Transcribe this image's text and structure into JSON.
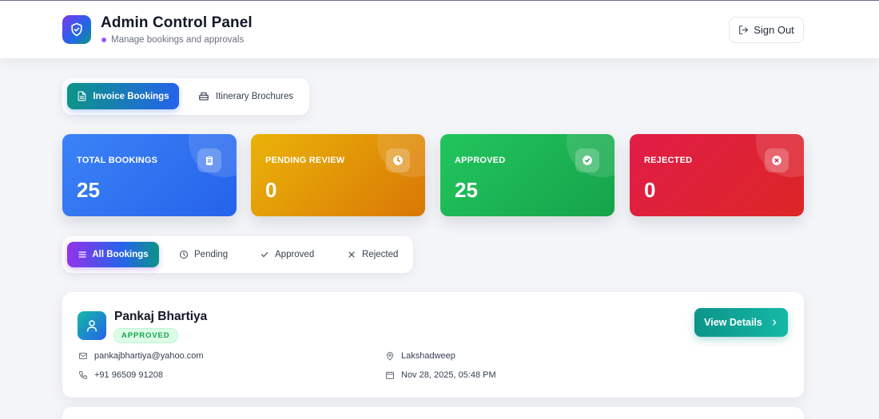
{
  "header": {
    "title": "Admin Control Panel",
    "subtitle": "Manage bookings and approvals",
    "sign_out_label": "Sign Out"
  },
  "main_tabs": {
    "invoice_label": "Invoice Bookings",
    "itinerary_label": "Itinerary Brochures"
  },
  "stats": [
    {
      "label": "TOTAL BOOKINGS",
      "value": "25",
      "icon": "clipboard-icon",
      "color": "#3b82f6"
    },
    {
      "label": "PENDING REVIEW",
      "value": "0",
      "icon": "clock-icon",
      "color": "#eab308"
    },
    {
      "label": "APPROVED",
      "value": "25",
      "icon": "check-circle-icon",
      "color": "#22c55e"
    },
    {
      "label": "REJECTED",
      "value": "0",
      "icon": "x-circle-icon",
      "color": "#e11d48"
    }
  ],
  "filters": {
    "all": "All Bookings",
    "pending": "Pending",
    "approved": "Approved",
    "rejected": "Rejected"
  },
  "bookings": [
    {
      "name": "Pankaj Bhartiya",
      "status": "APPROVED",
      "email": "pankajbhartiya@yahoo.com",
      "phone": "+91 96509 91208",
      "location": "Lakshadweep",
      "date": "Nov 28, 2025, 05:48 PM",
      "action_label": "View Details"
    }
  ],
  "colors": {
    "accent_teal": "#0d9488",
    "accent_blue": "#2563eb",
    "accent_purple": "#9333ea",
    "approved_green": "#16a34a"
  }
}
